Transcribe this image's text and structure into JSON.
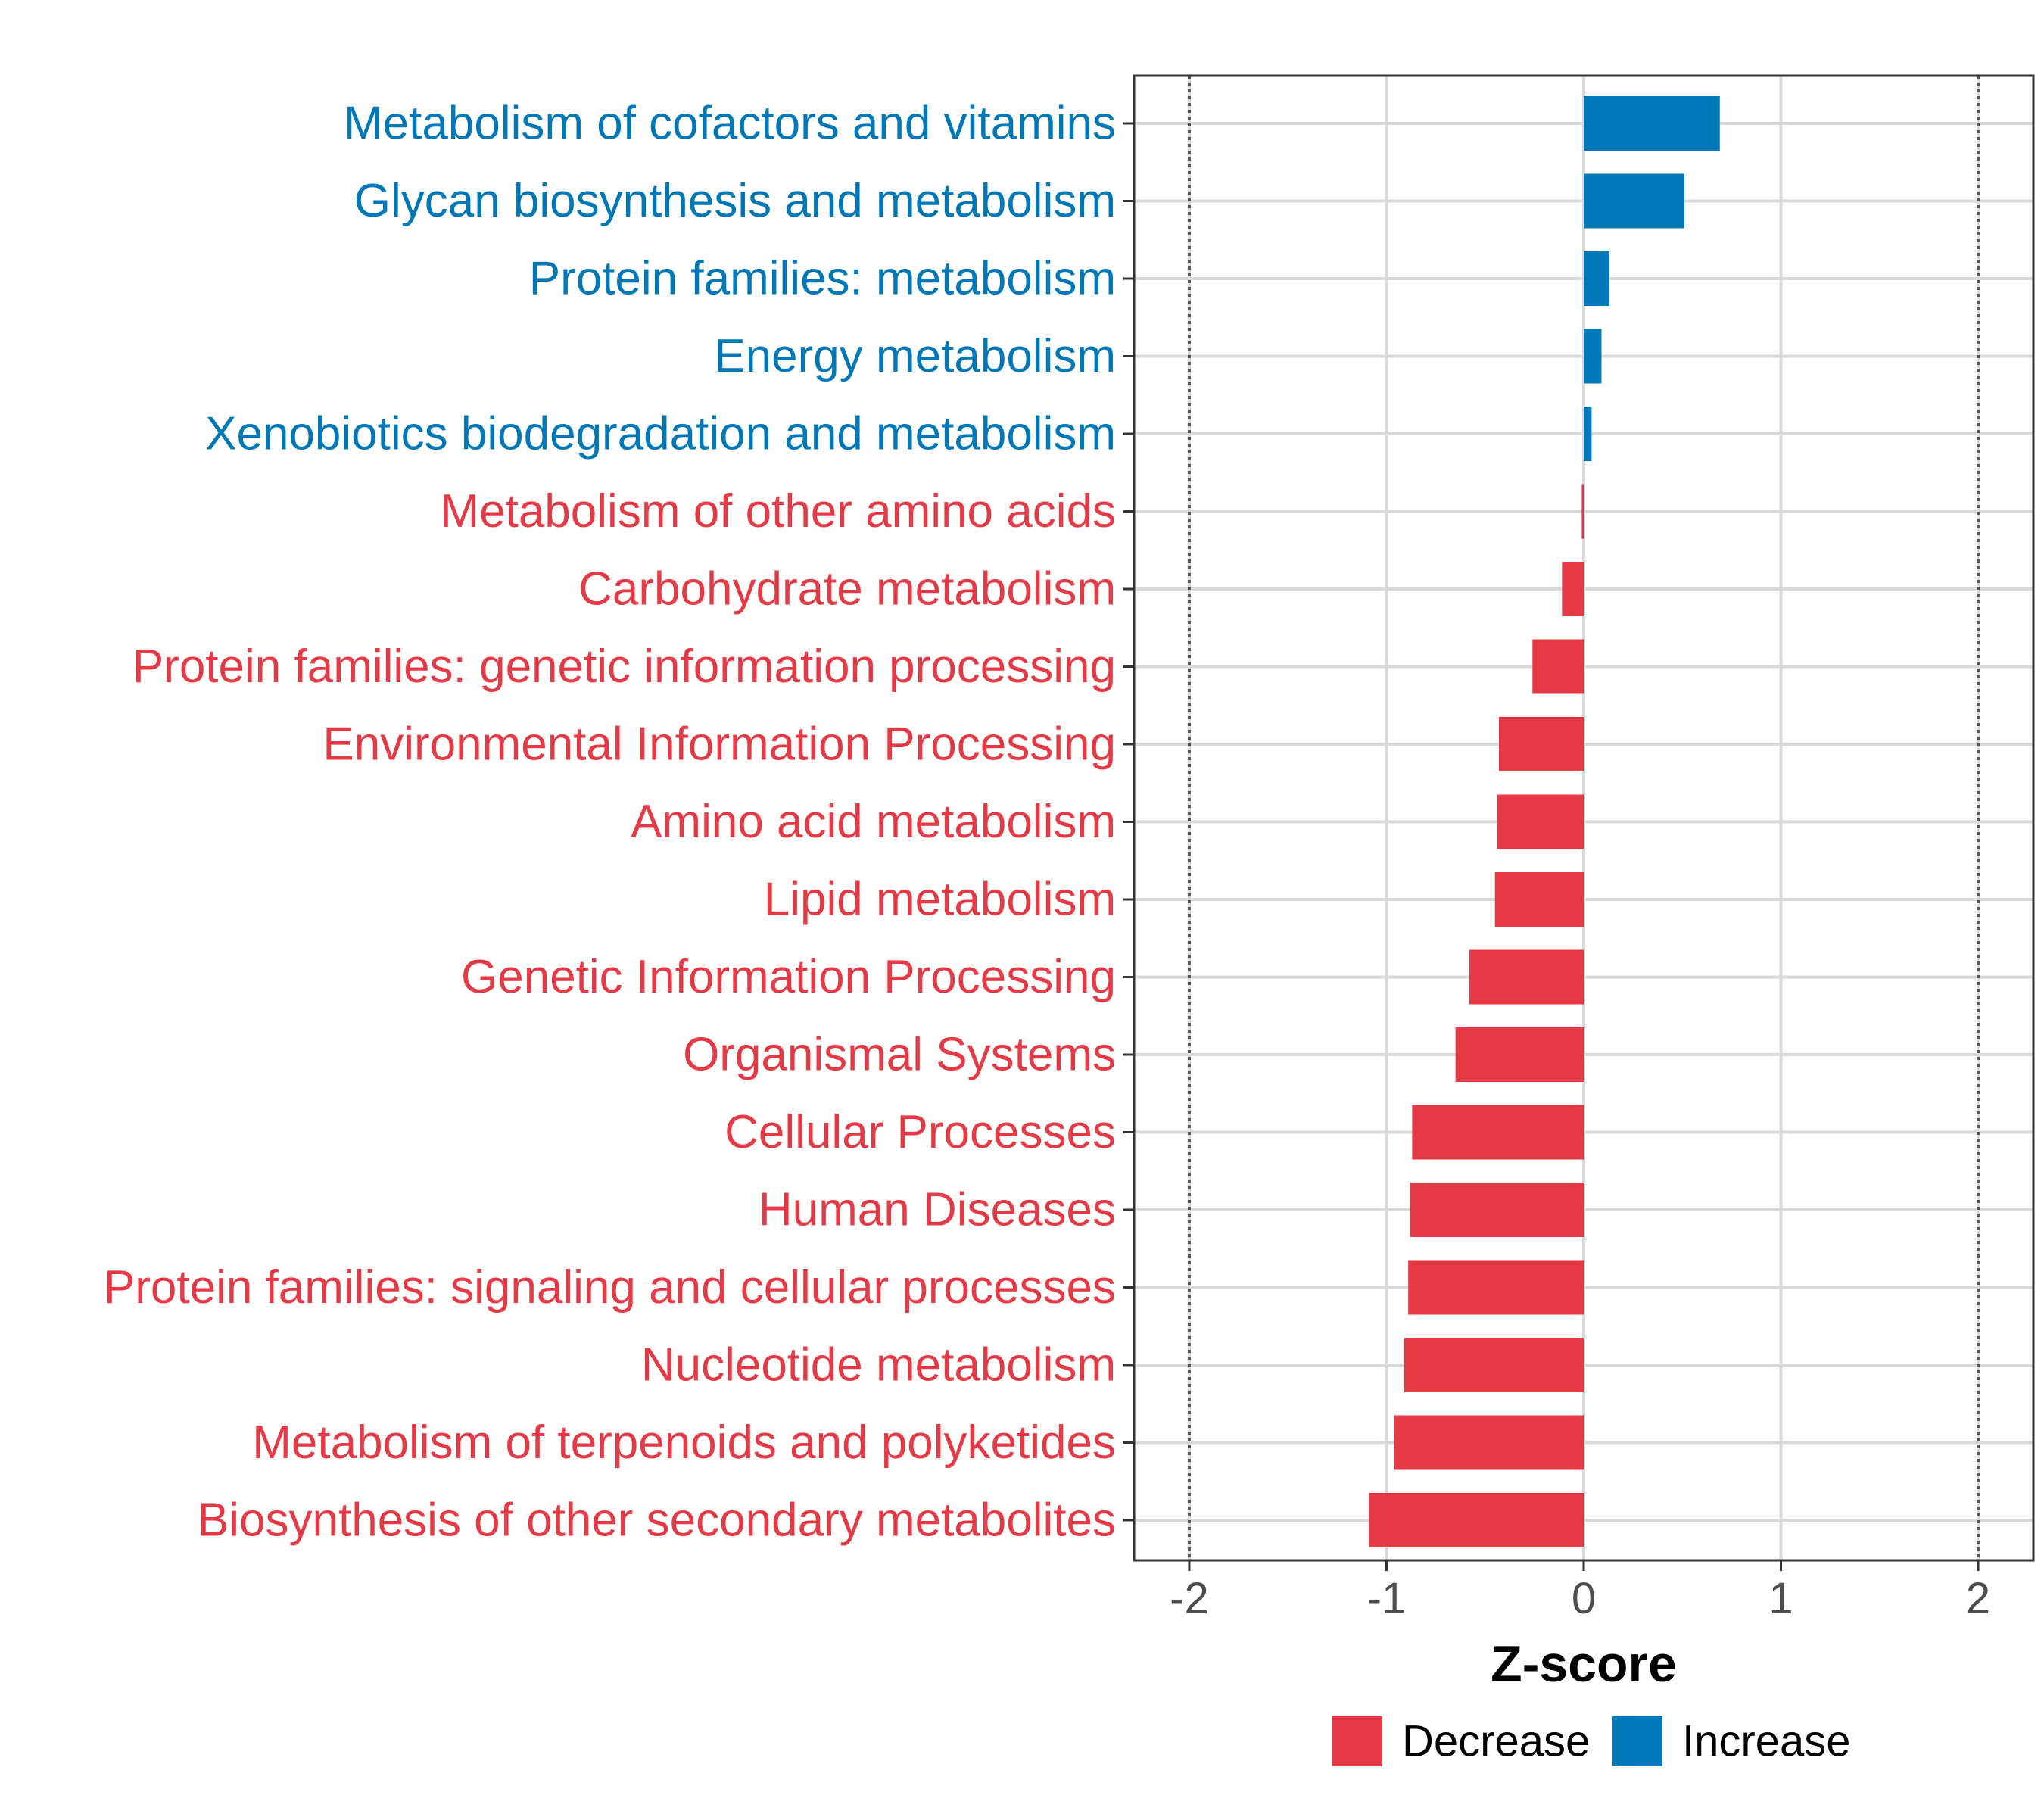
{
  "chart_data": {
    "type": "bar",
    "orientation": "horizontal",
    "xlabel": "Z-score",
    "ylabel": "",
    "xlim": [
      -2.28,
      2.28
    ],
    "xticks": [
      -2,
      -1,
      0,
      1,
      2
    ],
    "xtick_labels": [
      "-2",
      "-1",
      "0",
      "1",
      "2"
    ],
    "reference_lines": [
      -2,
      2
    ],
    "grid": true,
    "categories": [
      "Metabolism of cofactors and vitamins",
      "Glycan biosynthesis and metabolism",
      "Protein families: metabolism",
      "Energy metabolism",
      "Xenobiotics biodegradation and metabolism",
      "Metabolism of other amino acids",
      "Carbohydrate metabolism",
      "Protein families: genetic information processing",
      "Environmental Information Processing",
      "Amino acid metabolism",
      "Lipid metabolism",
      "Genetic Information Processing",
      "Organismal Systems",
      "Cellular Processes",
      "Human Diseases",
      "Protein families: signaling and cellular processes",
      "Nucleotide metabolism",
      "Metabolism of terpenoids and polyketides",
      "Biosynthesis of other secondary metabolites"
    ],
    "values": [
      0.69,
      0.51,
      0.13,
      0.09,
      0.04,
      -0.01,
      -0.11,
      -0.26,
      -0.43,
      -0.44,
      -0.45,
      -0.58,
      -0.65,
      -0.87,
      -0.88,
      -0.89,
      -0.91,
      -0.96,
      -1.09
    ],
    "groups": [
      "Increase",
      "Increase",
      "Increase",
      "Increase",
      "Increase",
      "Decrease",
      "Decrease",
      "Decrease",
      "Decrease",
      "Decrease",
      "Decrease",
      "Decrease",
      "Decrease",
      "Decrease",
      "Decrease",
      "Decrease",
      "Decrease",
      "Decrease",
      "Decrease"
    ],
    "legend": {
      "position": "bottom",
      "entries": [
        {
          "label": "Decrease",
          "color": "#e63946"
        },
        {
          "label": "Increase",
          "color": "#0077b6"
        }
      ]
    }
  },
  "colors": {
    "decrease": "#e63946",
    "increase": "#0077b6",
    "grid": "#d9d9d9",
    "panel_border": "#333333",
    "reference_line": "#555555"
  }
}
